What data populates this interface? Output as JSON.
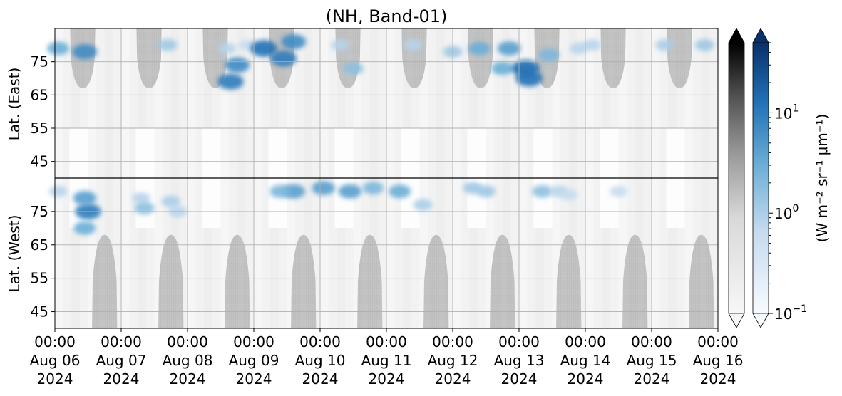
{
  "chart_data": {
    "type": "heatmap",
    "title": "(NH, Band-01)",
    "panels": [
      {
        "name": "east",
        "ylabel": "Lat. (East)",
        "yticks": [
          45,
          55,
          65,
          75
        ],
        "ylim": [
          40,
          85
        ]
      },
      {
        "name": "west",
        "ylabel": "Lat. (West)",
        "yticks": [
          75,
          65,
          55,
          45
        ],
        "ylim": [
          85,
          40
        ]
      }
    ],
    "xticks": [
      {
        "time": "00:00",
        "date": "Aug 06",
        "year": "2024"
      },
      {
        "time": "00:00",
        "date": "Aug 07",
        "year": "2024"
      },
      {
        "time": "00:00",
        "date": "Aug 08",
        "year": "2024"
      },
      {
        "time": "00:00",
        "date": "Aug 09",
        "year": "2024"
      },
      {
        "time": "00:00",
        "date": "Aug 10",
        "year": "2024"
      },
      {
        "time": "00:00",
        "date": "Aug 11",
        "year": "2024"
      },
      {
        "time": "00:00",
        "date": "Aug 12",
        "year": "2024"
      },
      {
        "time": "00:00",
        "date": "Aug 13",
        "year": "2024"
      },
      {
        "time": "00:00",
        "date": "Aug 14",
        "year": "2024"
      },
      {
        "time": "00:00",
        "date": "Aug 15",
        "year": "2024"
      },
      {
        "time": "00:00",
        "date": "Aug 16",
        "year": "2024"
      }
    ],
    "x_range": [
      "2024-08-06 00:00",
      "2024-08-16 00:00"
    ],
    "grid": true,
    "colorbars": [
      {
        "name": "greys",
        "colormap": "Greys",
        "scale": "log",
        "extend": "both",
        "range": [
          0.1,
          50
        ]
      },
      {
        "name": "blues",
        "colormap": "Blues",
        "scale": "log",
        "extend": "both",
        "range": [
          0.1,
          50
        ],
        "ticks": [
          {
            "base": "10",
            "exp": "−1"
          },
          {
            "base": "10",
            "exp": "0"
          },
          {
            "base": "10",
            "exp": "1"
          }
        ]
      }
    ],
    "colorbar_label": "(W m⁻² sr⁻¹ μm⁻¹)",
    "no_data_regions": {
      "east": [
        {
          "day": 0.42,
          "max_lat": 67
        },
        {
          "day": 1.42,
          "max_lat": 67
        },
        {
          "day": 2.42,
          "max_lat": 67
        },
        {
          "day": 3.42,
          "max_lat": 67
        },
        {
          "day": 4.42,
          "max_lat": 67
        },
        {
          "day": 5.42,
          "max_lat": 67
        },
        {
          "day": 6.42,
          "max_lat": 67
        },
        {
          "day": 7.42,
          "max_lat": 67
        },
        {
          "day": 8.42,
          "max_lat": 67
        },
        {
          "day": 9.42,
          "max_lat": 67
        }
      ],
      "west": [
        {
          "day": 0.75,
          "max_lat": 68
        },
        {
          "day": 1.75,
          "max_lat": 68
        },
        {
          "day": 2.75,
          "max_lat": 68
        },
        {
          "day": 3.75,
          "max_lat": 68
        },
        {
          "day": 4.75,
          "max_lat": 68
        },
        {
          "day": 5.75,
          "max_lat": 68
        },
        {
          "day": 6.75,
          "max_lat": 68
        },
        {
          "day": 7.75,
          "max_lat": 68
        },
        {
          "day": 8.75,
          "max_lat": 68
        },
        {
          "day": 9.75,
          "max_lat": 68
        }
      ]
    },
    "auroral_emission": [
      {
        "panel": "east",
        "day": 0.45,
        "lat": 78,
        "value": 3
      },
      {
        "panel": "east",
        "day": 0.05,
        "lat": 79,
        "value": 1.5
      },
      {
        "panel": "east",
        "day": 1.7,
        "lat": 80,
        "value": 0.8
      },
      {
        "panel": "east",
        "day": 2.6,
        "lat": 79,
        "value": 0.6
      },
      {
        "panel": "east",
        "day": 2.9,
        "lat": 80,
        "value": 0.5
      },
      {
        "panel": "east",
        "day": 2.65,
        "lat": 69,
        "value": 4
      },
      {
        "panel": "east",
        "day": 2.75,
        "lat": 74,
        "value": 3
      },
      {
        "panel": "east",
        "day": 3.15,
        "lat": 79,
        "value": 5
      },
      {
        "panel": "east",
        "day": 3.45,
        "lat": 76,
        "value": 4
      },
      {
        "panel": "east",
        "day": 3.6,
        "lat": 81,
        "value": 3
      },
      {
        "panel": "east",
        "day": 4.5,
        "lat": 73,
        "value": 1
      },
      {
        "panel": "east",
        "day": 4.3,
        "lat": 80,
        "value": 0.6
      },
      {
        "panel": "east",
        "day": 5.4,
        "lat": 80,
        "value": 0.6
      },
      {
        "panel": "east",
        "day": 6.0,
        "lat": 78,
        "value": 0.8
      },
      {
        "panel": "east",
        "day": 6.4,
        "lat": 79,
        "value": 1.5
      },
      {
        "panel": "east",
        "day": 6.85,
        "lat": 79,
        "value": 2
      },
      {
        "panel": "east",
        "day": 6.75,
        "lat": 73,
        "value": 1.5
      },
      {
        "panel": "east",
        "day": 7.1,
        "lat": 73,
        "value": 6
      },
      {
        "panel": "east",
        "day": 7.15,
        "lat": 70,
        "value": 5
      },
      {
        "panel": "east",
        "day": 7.45,
        "lat": 77,
        "value": 1.2
      },
      {
        "panel": "east",
        "day": 7.9,
        "lat": 79,
        "value": 0.6
      },
      {
        "panel": "east",
        "day": 8.1,
        "lat": 80,
        "value": 0.6
      },
      {
        "panel": "east",
        "day": 9.2,
        "lat": 80,
        "value": 0.7
      },
      {
        "panel": "east",
        "day": 9.8,
        "lat": 80,
        "value": 0.8
      },
      {
        "panel": "west",
        "day": 0.05,
        "lat": 81,
        "value": 0.6
      },
      {
        "panel": "west",
        "day": 0.5,
        "lat": 75,
        "value": 4
      },
      {
        "panel": "west",
        "day": 0.45,
        "lat": 70,
        "value": 1.5
      },
      {
        "panel": "west",
        "day": 0.45,
        "lat": 79,
        "value": 2
      },
      {
        "panel": "west",
        "day": 1.3,
        "lat": 79,
        "value": 0.6
      },
      {
        "panel": "west",
        "day": 1.35,
        "lat": 76,
        "value": 1.0
      },
      {
        "panel": "west",
        "day": 1.75,
        "lat": 78,
        "value": 0.7
      },
      {
        "panel": "west",
        "day": 1.85,
        "lat": 75,
        "value": 0.6
      },
      {
        "panel": "west",
        "day": 3.6,
        "lat": 81,
        "value": 2
      },
      {
        "panel": "west",
        "day": 3.4,
        "lat": 81,
        "value": 1.2
      },
      {
        "panel": "west",
        "day": 4.05,
        "lat": 82,
        "value": 2
      },
      {
        "panel": "west",
        "day": 4.45,
        "lat": 81,
        "value": 2
      },
      {
        "panel": "west",
        "day": 4.8,
        "lat": 82,
        "value": 1.2
      },
      {
        "panel": "west",
        "day": 5.2,
        "lat": 81,
        "value": 1.5
      },
      {
        "panel": "west",
        "day": 5.55,
        "lat": 77,
        "value": 0.7
      },
      {
        "panel": "west",
        "day": 6.3,
        "lat": 82,
        "value": 0.8
      },
      {
        "panel": "west",
        "day": 6.5,
        "lat": 81,
        "value": 0.8
      },
      {
        "panel": "west",
        "day": 7.35,
        "lat": 81,
        "value": 1.0
      },
      {
        "panel": "west",
        "day": 7.6,
        "lat": 81,
        "value": 0.6
      },
      {
        "panel": "west",
        "day": 7.75,
        "lat": 80,
        "value": 0.5
      },
      {
        "panel": "west",
        "day": 8.5,
        "lat": 81,
        "value": 0.5
      }
    ]
  }
}
